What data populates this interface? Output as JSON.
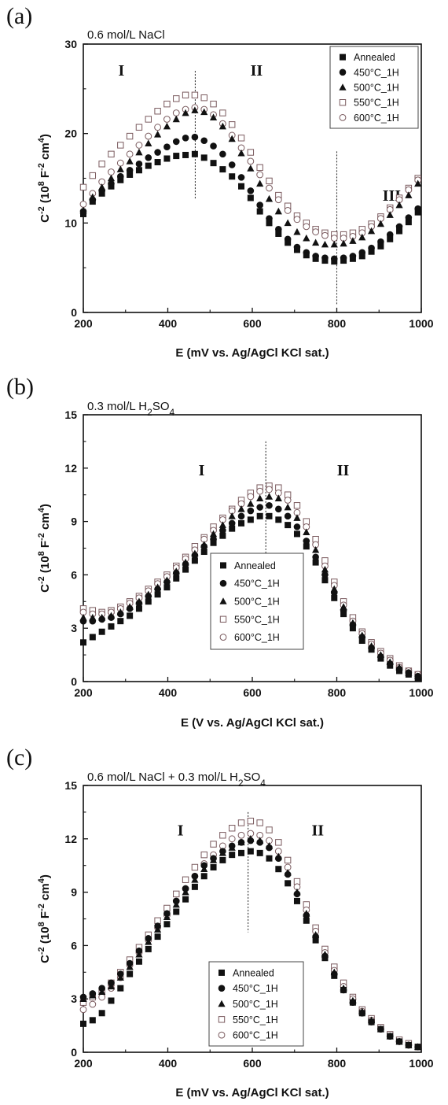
{
  "chart_data": [
    {
      "type": "scatter",
      "panel": "(a)",
      "title": "0.6 mol/L NaCl",
      "title_parts": [
        {
          "t": "0.6 mol/L NaCl",
          "sub": false
        }
      ],
      "xlabel": "E (mV vs. Ag/AgCl KCl sat.)",
      "ylabel_parts": [
        {
          "t": "C",
          "sup": false
        },
        {
          "t": "-2",
          "sup": true
        },
        {
          "t": " (10",
          "sup": false
        },
        {
          "t": "8",
          "sup": true
        },
        {
          "t": " F",
          "sup": false
        },
        {
          "t": "-2",
          "sup": true
        },
        {
          "t": " cm",
          "sup": false
        },
        {
          "t": "4",
          "sup": true
        },
        {
          "t": ")",
          "sup": false
        }
      ],
      "xlim": [
        200,
        1000
      ],
      "ylim": [
        0,
        30
      ],
      "xticks": [
        "200",
        "400",
        "600",
        "800",
        "1000"
      ],
      "yticks": [
        "0",
        "10",
        "20",
        "30"
      ],
      "legend_position": "top-right",
      "dividers": [
        465,
        800
      ],
      "regions": [
        {
          "label": "I",
          "x": 290,
          "y": 26.5
        },
        {
          "label": "II",
          "x": 610,
          "y": 26.5
        },
        {
          "label": "III",
          "x": 930,
          "y": 12.5
        }
      ],
      "x": [
        200,
        222,
        244,
        266,
        288,
        310,
        332,
        354,
        376,
        398,
        420,
        442,
        464,
        486,
        508,
        530,
        552,
        574,
        596,
        618,
        640,
        662,
        684,
        706,
        728,
        750,
        772,
        794,
        816,
        838,
        860,
        882,
        904,
        926,
        948,
        970,
        992
      ],
      "series": [
        {
          "name": "Annealed",
          "marker": "square",
          "values": [
            11.0,
            12.4,
            13.3,
            14.1,
            14.8,
            15.4,
            15.9,
            16.4,
            16.8,
            17.2,
            17.5,
            17.6,
            17.7,
            17.3,
            16.7,
            16.0,
            15.2,
            14.1,
            12.8,
            11.3,
            10.0,
            8.8,
            7.8,
            7.0,
            6.4,
            6.0,
            5.8,
            5.7,
            5.8,
            6.0,
            6.3,
            6.8,
            7.4,
            8.2,
            9.1,
            10.1,
            11.2
          ]
        },
        {
          "name": "450°C_1H",
          "marker": "circle",
          "values": [
            11.3,
            12.6,
            13.6,
            14.4,
            15.2,
            15.9,
            16.6,
            17.3,
            17.9,
            18.5,
            19.1,
            19.5,
            19.6,
            19.2,
            18.6,
            17.7,
            16.5,
            15.1,
            13.6,
            12.0,
            10.5,
            9.3,
            8.2,
            7.3,
            6.7,
            6.3,
            6.1,
            6.0,
            6.1,
            6.3,
            6.7,
            7.2,
            7.9,
            8.7,
            9.6,
            10.6,
            11.6
          ]
        },
        {
          "name": "500°C_1H",
          "marker": "triangle",
          "values": [
            11.4,
            12.9,
            14.0,
            15.0,
            16.0,
            16.9,
            17.9,
            18.9,
            19.9,
            20.8,
            21.6,
            22.3,
            22.6,
            22.4,
            21.8,
            20.8,
            19.4,
            17.8,
            16.1,
            14.4,
            12.7,
            11.3,
            10.0,
            9.0,
            8.3,
            7.8,
            7.6,
            7.6,
            7.7,
            8.0,
            8.4,
            9.1,
            9.9,
            10.9,
            12.0,
            13.1,
            14.4
          ]
        },
        {
          "name": "550°C_1H",
          "marker": "open-square",
          "values": [
            14.0,
            15.3,
            16.6,
            17.7,
            18.7,
            19.7,
            20.7,
            21.6,
            22.5,
            23.3,
            23.9,
            24.3,
            24.3,
            24.0,
            23.3,
            22.3,
            21.0,
            19.5,
            17.9,
            16.2,
            14.7,
            13.1,
            11.9,
            10.8,
            10.0,
            9.3,
            8.9,
            8.7,
            8.7,
            8.9,
            9.3,
            9.9,
            10.7,
            11.7,
            12.8,
            13.9,
            15.0
          ]
        },
        {
          "name": "600°C_1H",
          "marker": "open-circle",
          "values": [
            12.1,
            13.3,
            14.6,
            15.7,
            16.7,
            17.7,
            18.7,
            19.7,
            20.7,
            21.6,
            22.3,
            22.7,
            22.9,
            22.7,
            22.1,
            21.1,
            19.8,
            18.4,
            16.9,
            15.4,
            13.9,
            12.6,
            11.4,
            10.4,
            9.6,
            9.0,
            8.6,
            8.3,
            8.3,
            8.5,
            8.9,
            9.6,
            10.5,
            11.5,
            12.6,
            13.7,
            14.8
          ]
        }
      ]
    },
    {
      "type": "scatter",
      "panel": "(b)",
      "title": "0.3 mol/L H2SO4",
      "title_parts": [
        {
          "t": "0.3 mol/L H",
          "sub": false
        },
        {
          "t": "2",
          "sub": true
        },
        {
          "t": "SO",
          "sub": false
        },
        {
          "t": "4",
          "sub": true
        }
      ],
      "xlabel": "E (V vs. Ag/AgCl KCl sat.)",
      "ylabel_parts": [
        {
          "t": "C",
          "sup": false
        },
        {
          "t": "-2",
          "sup": true
        },
        {
          "t": " (10",
          "sup": false
        },
        {
          "t": "8",
          "sup": true
        },
        {
          "t": " F",
          "sup": false
        },
        {
          "t": "-2",
          "sup": true
        },
        {
          "t": " cm",
          "sup": false
        },
        {
          "t": "4",
          "sup": true
        },
        {
          "t": ")",
          "sup": false
        }
      ],
      "xlim": [
        200,
        1000
      ],
      "ylim": [
        0,
        15
      ],
      "xticks": [
        "200",
        "400",
        "600",
        "800",
        "1000"
      ],
      "yticks": [
        "0",
        "3",
        "6",
        "9",
        "12",
        "15"
      ],
      "legend_position": "bottom-center",
      "dividers": [
        632
      ],
      "regions": [
        {
          "label": "I",
          "x": 480,
          "y": 11.6
        },
        {
          "label": "II",
          "x": 815,
          "y": 11.6
        }
      ],
      "x": [
        200,
        222,
        244,
        266,
        288,
        310,
        332,
        354,
        376,
        398,
        420,
        442,
        464,
        486,
        508,
        530,
        552,
        574,
        596,
        618,
        640,
        662,
        684,
        706,
        728,
        750,
        772,
        794,
        816,
        838,
        860,
        882,
        904,
        926,
        948,
        970,
        992
      ],
      "series": [
        {
          "name": "Annealed",
          "marker": "square",
          "values": [
            2.2,
            2.5,
            2.8,
            3.1,
            3.4,
            3.7,
            4.1,
            4.5,
            4.9,
            5.3,
            5.8,
            6.3,
            6.8,
            7.3,
            7.8,
            8.2,
            8.6,
            8.9,
            9.1,
            9.3,
            9.3,
            9.1,
            8.8,
            8.3,
            7.6,
            6.7,
            5.7,
            4.7,
            3.8,
            3.0,
            2.3,
            1.8,
            1.3,
            0.9,
            0.6,
            0.4,
            0.2
          ]
        },
        {
          "name": "450°C_1H",
          "marker": "circle",
          "values": [
            3.4,
            3.4,
            3.5,
            3.6,
            3.8,
            4.1,
            4.4,
            4.8,
            5.2,
            5.6,
            6.1,
            6.6,
            7.1,
            7.6,
            8.0,
            8.5,
            8.9,
            9.3,
            9.6,
            9.8,
            9.9,
            9.7,
            9.3,
            8.7,
            7.9,
            7.0,
            6.0,
            5.0,
            4.0,
            3.2,
            2.5,
            1.9,
            1.4,
            1.0,
            0.7,
            0.5,
            0.3
          ]
        },
        {
          "name": "500°C_1H",
          "marker": "triangle",
          "values": [
            3.6,
            3.6,
            3.6,
            3.7,
            3.9,
            4.2,
            4.5,
            4.9,
            5.3,
            5.7,
            6.2,
            6.7,
            7.2,
            7.7,
            8.3,
            8.8,
            9.3,
            9.7,
            10.0,
            10.3,
            10.4,
            10.3,
            9.8,
            9.2,
            8.4,
            7.4,
            6.3,
            5.2,
            4.2,
            3.3,
            2.6,
            2.0,
            1.5,
            1.1,
            0.8,
            0.5,
            0.3
          ]
        },
        {
          "name": "550°C_1H",
          "marker": "open-square",
          "values": [
            4.1,
            4.0,
            3.9,
            4.0,
            4.2,
            4.5,
            4.8,
            5.2,
            5.6,
            6.0,
            6.5,
            7.0,
            7.6,
            8.1,
            8.7,
            9.2,
            9.7,
            10.2,
            10.6,
            10.9,
            11.0,
            10.9,
            10.5,
            9.9,
            9.0,
            8.0,
            6.8,
            5.6,
            4.5,
            3.6,
            2.8,
            2.2,
            1.7,
            1.3,
            0.9,
            0.6,
            0.4
          ]
        },
        {
          "name": "600°C_1H",
          "marker": "open-circle",
          "values": [
            3.9,
            3.8,
            3.8,
            3.9,
            4.1,
            4.4,
            4.7,
            5.1,
            5.5,
            5.9,
            6.4,
            6.9,
            7.4,
            8.0,
            8.5,
            9.1,
            9.6,
            10.0,
            10.4,
            10.7,
            10.8,
            10.6,
            10.2,
            9.5,
            8.7,
            7.7,
            6.5,
            5.4,
            4.3,
            3.4,
            2.7,
            2.1,
            1.6,
            1.2,
            0.8,
            0.6,
            0.4
          ]
        }
      ]
    },
    {
      "type": "scatter",
      "panel": "(c)",
      "title": "0.6 mol/L NaCl + 0.3 mol/L H2SO4",
      "title_parts": [
        {
          "t": "0.6 mol/L NaCl + 0.3 mol/L H",
          "sub": false
        },
        {
          "t": "2",
          "sub": true
        },
        {
          "t": "SO",
          "sub": false
        },
        {
          "t": "4",
          "sub": true
        }
      ],
      "xlabel": "E (mV vs. Ag/AgCl KCl sat.)",
      "ylabel_parts": [
        {
          "t": "C",
          "sup": false
        },
        {
          "t": "-2",
          "sup": true
        },
        {
          "t": " (10",
          "sup": false
        },
        {
          "t": "8",
          "sup": true
        },
        {
          "t": " F",
          "sup": false
        },
        {
          "t": "-2",
          "sup": true
        },
        {
          "t": " cm",
          "sup": false
        },
        {
          "t": "4",
          "sup": true
        },
        {
          "t": ")",
          "sup": false
        }
      ],
      "xlim": [
        200,
        1000
      ],
      "ylim": [
        0,
        15
      ],
      "xticks": [
        "200",
        "400",
        "600",
        "800",
        "1000"
      ],
      "yticks": [
        "0",
        "3",
        "6",
        "9",
        "12",
        "15"
      ],
      "legend_position": "bottom-center",
      "dividers": [
        590
      ],
      "regions": [
        {
          "label": "I",
          "x": 430,
          "y": 12.2
        },
        {
          "label": "II",
          "x": 755,
          "y": 12.2
        }
      ],
      "x": [
        200,
        222,
        244,
        266,
        288,
        310,
        332,
        354,
        376,
        398,
        420,
        442,
        464,
        486,
        508,
        530,
        552,
        574,
        596,
        618,
        640,
        662,
        684,
        706,
        728,
        750,
        772,
        794,
        816,
        838,
        860,
        882,
        904,
        926,
        948,
        970,
        992
      ],
      "series": [
        {
          "name": "Annealed",
          "marker": "square",
          "values": [
            1.6,
            1.8,
            2.2,
            2.9,
            3.6,
            4.4,
            5.1,
            5.8,
            6.5,
            7.2,
            7.9,
            8.6,
            9.3,
            9.9,
            10.4,
            10.8,
            11.1,
            11.2,
            11.3,
            11.2,
            10.9,
            10.3,
            9.5,
            8.5,
            7.4,
            6.3,
            5.3,
            4.3,
            3.5,
            2.8,
            2.2,
            1.7,
            1.3,
            0.9,
            0.6,
            0.4,
            0.3
          ]
        },
        {
          "name": "450°C_1H",
          "marker": "circle",
          "values": [
            3.1,
            3.3,
            3.6,
            3.9,
            4.4,
            5.0,
            5.7,
            6.4,
            7.1,
            7.8,
            8.5,
            9.2,
            9.9,
            10.5,
            10.9,
            11.3,
            11.6,
            11.8,
            11.9,
            11.8,
            11.5,
            10.9,
            10.0,
            8.9,
            7.7,
            6.5,
            5.4,
            4.4,
            3.5,
            2.8,
            2.2,
            1.7,
            1.3,
            0.9,
            0.6,
            0.4,
            0.3
          ]
        },
        {
          "name": "500°C_1H",
          "marker": "triangle",
          "values": [
            3.0,
            3.2,
            3.4,
            3.7,
            4.2,
            4.8,
            5.5,
            6.2,
            6.9,
            7.6,
            8.3,
            9.0,
            9.7,
            10.3,
            10.8,
            11.2,
            11.5,
            11.8,
            12.0,
            11.9,
            11.6,
            11.0,
            10.1,
            9.0,
            7.8,
            6.6,
            5.5,
            4.5,
            3.6,
            2.9,
            2.3,
            1.8,
            1.3,
            0.9,
            0.6,
            0.4,
            0.3
          ]
        },
        {
          "name": "550°C_1H",
          "marker": "open-square",
          "values": [
            2.8,
            3.1,
            3.4,
            3.9,
            4.5,
            5.2,
            5.9,
            6.6,
            7.4,
            8.1,
            8.9,
            9.7,
            10.4,
            11.1,
            11.7,
            12.2,
            12.6,
            12.9,
            13.0,
            12.9,
            12.5,
            11.8,
            10.8,
            9.6,
            8.3,
            7.0,
            5.8,
            4.8,
            3.9,
            3.1,
            2.4,
            1.9,
            1.4,
            1.0,
            0.7,
            0.5,
            0.3
          ]
        },
        {
          "name": "600°C_1H",
          "marker": "open-circle",
          "values": [
            2.4,
            2.7,
            3.1,
            3.6,
            4.2,
            4.9,
            5.6,
            6.3,
            7.0,
            7.7,
            8.5,
            9.2,
            9.9,
            10.6,
            11.1,
            11.6,
            12.0,
            12.2,
            12.3,
            12.2,
            11.9,
            11.3,
            10.4,
            9.3,
            8.0,
            6.8,
            5.6,
            4.6,
            3.7,
            3.0,
            2.3,
            1.8,
            1.3,
            0.9,
            0.6,
            0.4,
            0.3
          ]
        }
      ]
    }
  ]
}
